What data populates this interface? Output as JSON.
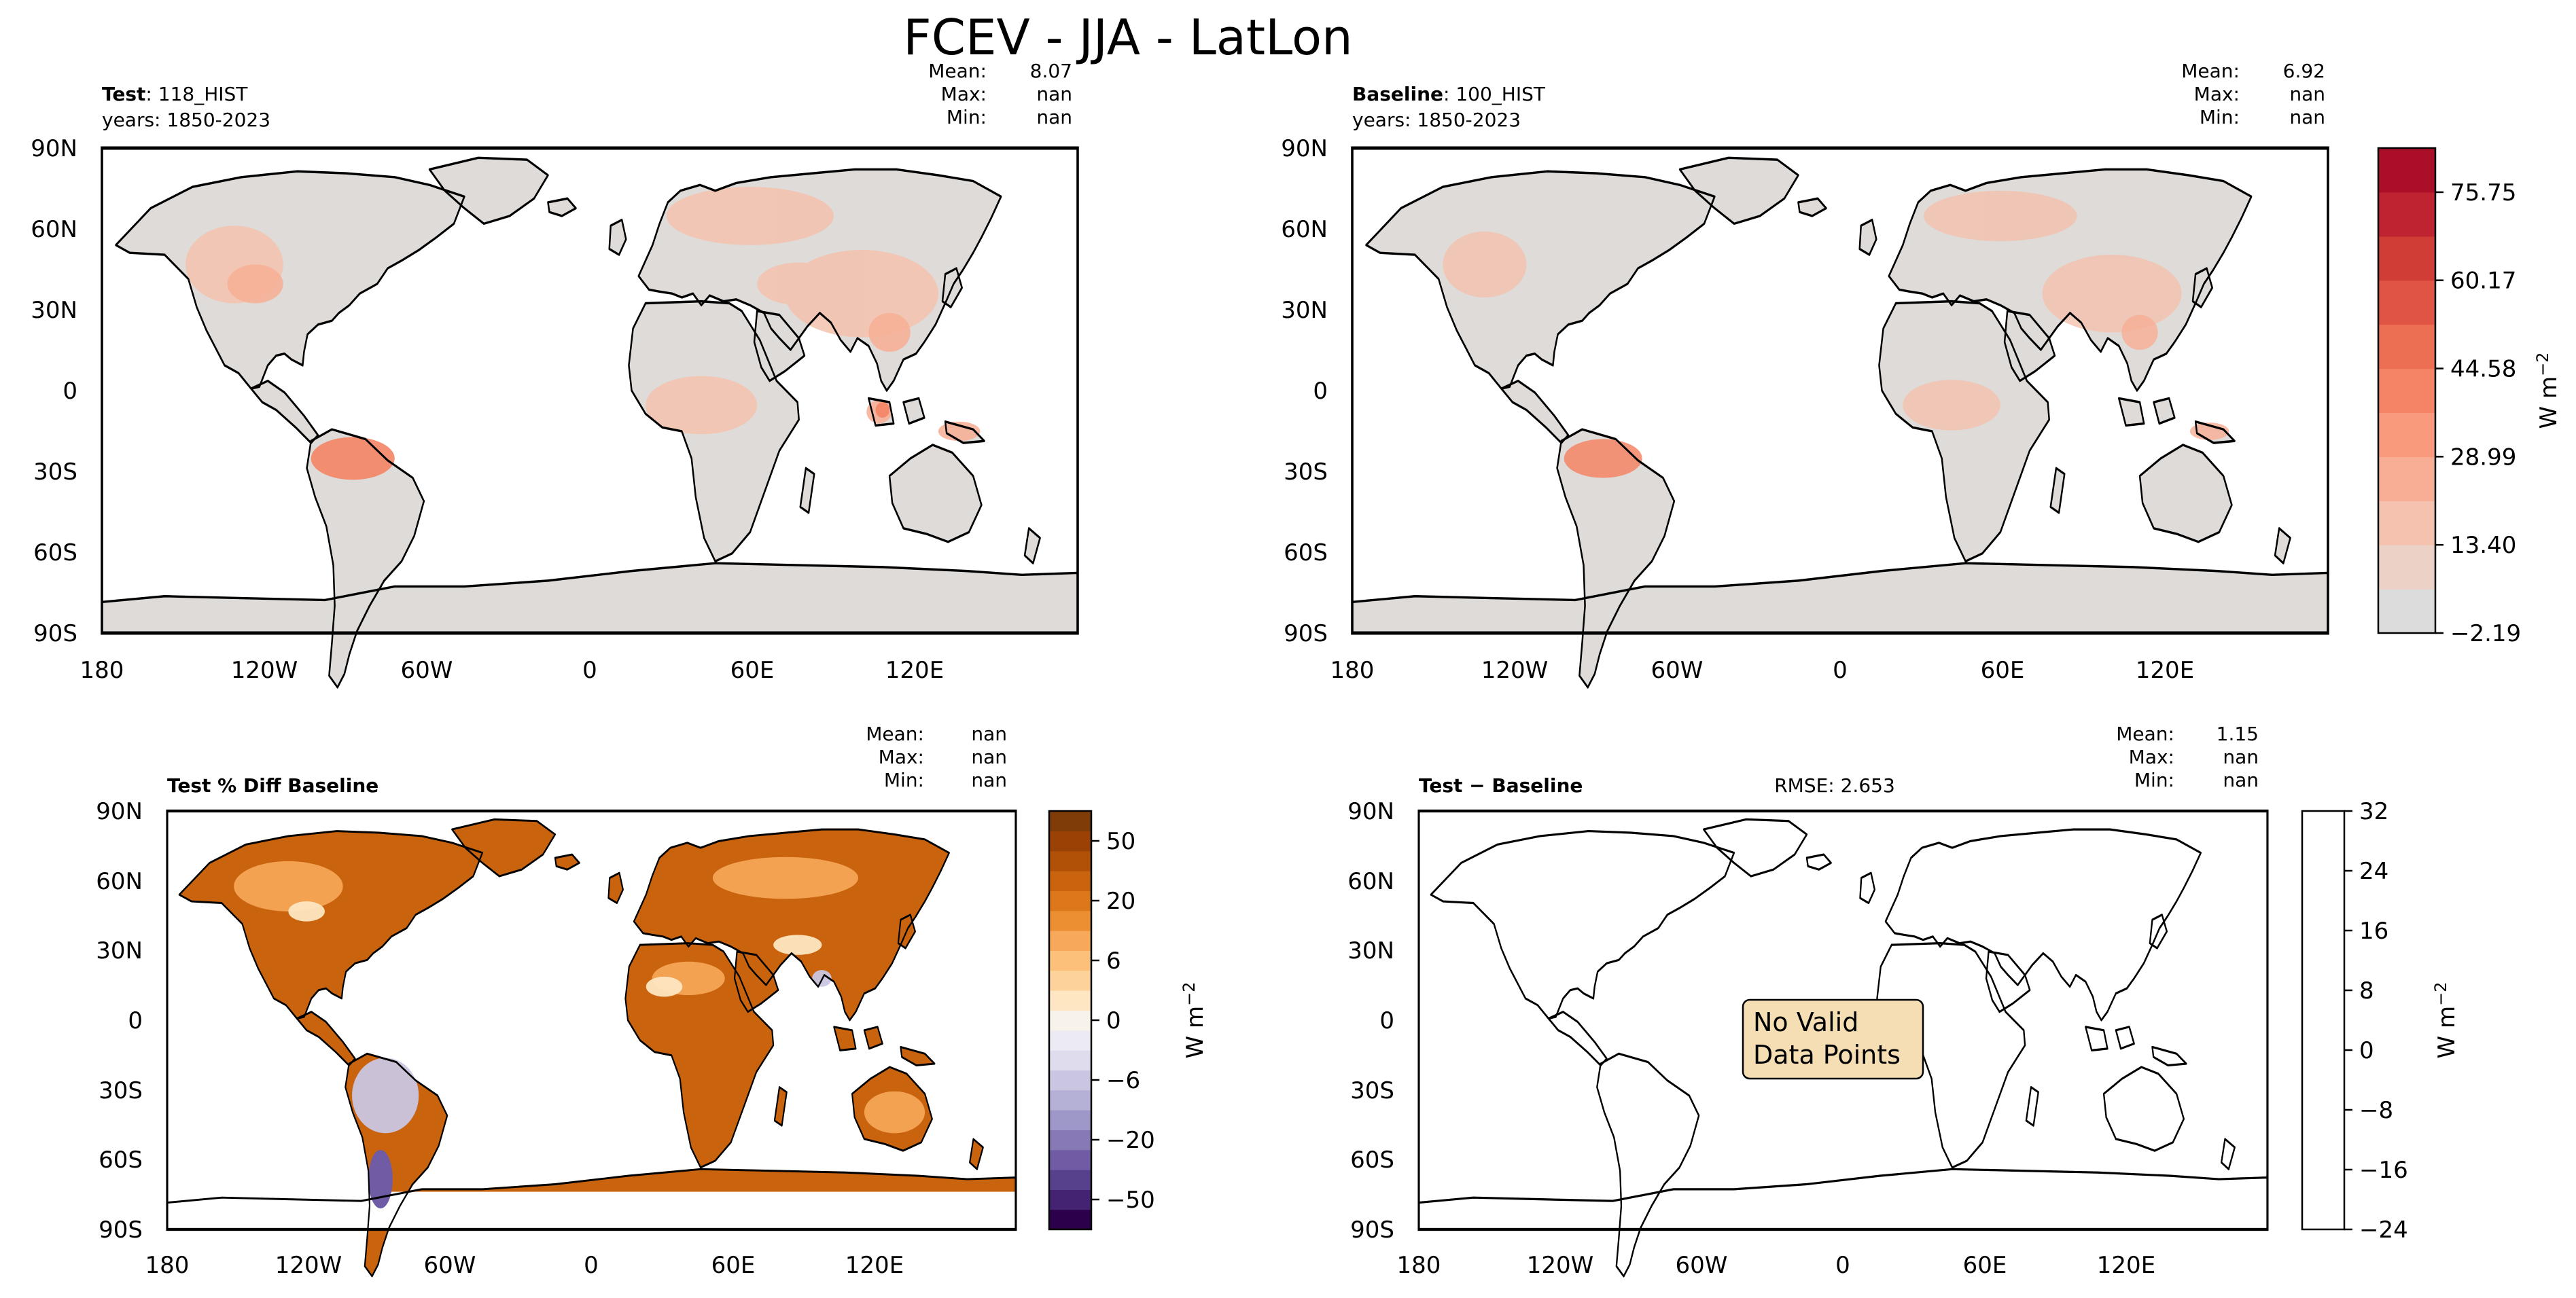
{
  "figure": {
    "title": "FCEV - JJA - LatLon"
  },
  "colors": {
    "land_fill": "#dedbd8",
    "reds": [
      "#dcdcdc",
      "#ecd1c6",
      "#f4c2ae",
      "#f8ae95",
      "#f99a7d",
      "#f48465",
      "#ec6f53",
      "#df5442",
      "#cf3d36",
      "#bf2230",
      "#ab0f28"
    ],
    "puor": [
      "#2d004b",
      "#432372",
      "#57408c",
      "#6f5ca4",
      "#8679b6",
      "#9d98c8",
      "#b5b1d6",
      "#cac6e2",
      "#dfdcee",
      "#ecebf3",
      "#f7f2ea",
      "#fde6c1",
      "#fdd39b",
      "#fdc07a",
      "#f7a85a",
      "#ec8f33",
      "#dc771c",
      "#c9630e",
      "#b15007",
      "#9a4106",
      "#7f3b08"
    ]
  },
  "chart_data": [
    {
      "id": "test",
      "type": "heatmap",
      "title_bold": "Test",
      "title_rest": ": 118_HIST",
      "years": "years: 1850-2023",
      "stats": {
        "mean_label": "Mean:",
        "mean": "8.07",
        "max_label": "Max:",
        "max": "nan",
        "min_label": "Min:",
        "min": "nan"
      },
      "xticks": [
        "180",
        "120W",
        "60W",
        "0",
        "60E",
        "120E"
      ],
      "xtick_values": [
        -180,
        -120,
        -60,
        0,
        60,
        120
      ],
      "yticks": [
        "90N",
        "60N",
        "30N",
        "0",
        "30S",
        "60S",
        "90S"
      ],
      "ytick_values": [
        90,
        60,
        30,
        0,
        -30,
        -60,
        -90
      ],
      "xlim": [
        -180,
        180
      ],
      "ylim": [
        -90,
        90
      ]
    },
    {
      "id": "baseline",
      "type": "heatmap",
      "title_bold": "Baseline",
      "title_rest": ": 100_HIST",
      "years": "years: 1850-2023",
      "stats": {
        "mean_label": "Mean:",
        "mean": "6.92",
        "max_label": "Max:",
        "max": "nan",
        "min_label": "Min:",
        "min": "nan"
      },
      "xticks": [
        "180",
        "120W",
        "60W",
        "0",
        "60E",
        "120E"
      ],
      "xtick_values": [
        -180,
        -120,
        -60,
        0,
        60,
        120
      ],
      "yticks": [
        "90N",
        "60N",
        "30N",
        "0",
        "30S",
        "60S",
        "90S"
      ],
      "ytick_values": [
        90,
        60,
        30,
        0,
        -30,
        -60,
        -90
      ],
      "xlim": [
        -180,
        180
      ],
      "ylim": [
        -90,
        90
      ],
      "colorbar": {
        "label": "W m",
        "label_sup": "−2",
        "ticks": [
          "−2.19",
          "13.40",
          "28.99",
          "44.58",
          "60.17",
          "75.75"
        ],
        "tick_values": [
          -2.19,
          13.4,
          28.99,
          44.58,
          60.17,
          75.75
        ],
        "range": [
          -2.19,
          83.55
        ]
      }
    },
    {
      "id": "pctdiff",
      "type": "heatmap",
      "title_bold": "Test % Diff Baseline",
      "stats": {
        "mean_label": "Mean:",
        "mean": "nan",
        "max_label": "Max:",
        "max": "nan",
        "min_label": "Min:",
        "min": "nan"
      },
      "xticks": [
        "180",
        "120W",
        "60W",
        "0",
        "60E",
        "120E"
      ],
      "xtick_values": [
        -180,
        -120,
        -60,
        0,
        60,
        120
      ],
      "yticks": [
        "90N",
        "60N",
        "30N",
        "0",
        "30S",
        "60S",
        "90S"
      ],
      "ytick_values": [
        90,
        60,
        30,
        0,
        -30,
        -60,
        -90
      ],
      "xlim": [
        -180,
        180
      ],
      "ylim": [
        -90,
        90
      ],
      "colorbar": {
        "label": "W m",
        "label_sup": "−2",
        "ticks": [
          "−50",
          "−20",
          "−6",
          "0",
          "6",
          "20",
          "50"
        ],
        "tick_values": [
          -50,
          -20,
          -6,
          0,
          6,
          20,
          50
        ]
      }
    },
    {
      "id": "diff",
      "type": "heatmap",
      "title_bold": "Test − Baseline",
      "rmse": "RMSE: 2.653",
      "stats": {
        "mean_label": "Mean:",
        "mean": "1.15",
        "max_label": "Max:",
        "max": "nan",
        "min_label": "Min:",
        "min": "nan"
      },
      "xticks": [
        "180",
        "120W",
        "60W",
        "0",
        "60E",
        "120E"
      ],
      "xtick_values": [
        -180,
        -120,
        -60,
        0,
        60,
        120
      ],
      "yticks": [
        "90N",
        "60N",
        "30N",
        "0",
        "30S",
        "60S",
        "90S"
      ],
      "ytick_values": [
        90,
        60,
        30,
        0,
        -30,
        -60,
        -90
      ],
      "xlim": [
        -180,
        180
      ],
      "ylim": [
        -90,
        90
      ],
      "no_data_line1": "No Valid",
      "no_data_line2": "Data Points",
      "colorbar": {
        "label": "W m",
        "label_sup": "−2",
        "ticks": [
          "−24",
          "−16",
          "−8",
          "0",
          "8",
          "16",
          "24",
          "32"
        ],
        "tick_values": [
          -24,
          -16,
          -8,
          0,
          8,
          16,
          24,
          32
        ],
        "range": [
          -24,
          32
        ]
      }
    }
  ]
}
